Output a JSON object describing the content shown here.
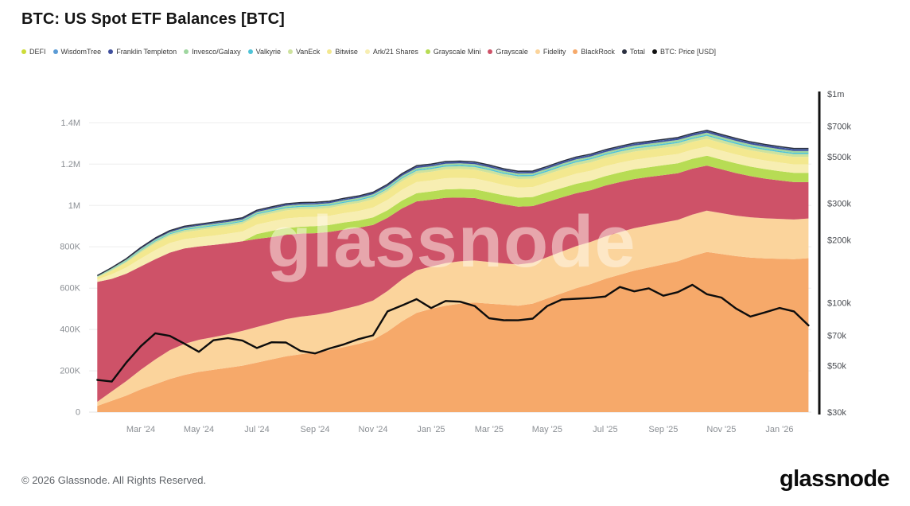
{
  "page": {
    "title": "BTC: US Spot ETF Balances [BTC]",
    "footer": "© 2026 Glassnode. All Rights Reserved.",
    "logo": "glassnode",
    "watermark": "glassnode"
  },
  "legend": [
    {
      "label": "DEFI",
      "slug": "defi",
      "color": "#cddc39"
    },
    {
      "label": "WisdomTree",
      "slug": "wisdomtree",
      "color": "#5b9bd5"
    },
    {
      "label": "Franklin Templeton",
      "slug": "franklin-templeton",
      "color": "#3f4f9d"
    },
    {
      "label": "Invesco/Galaxy",
      "slug": "invesco-galaxy",
      "color": "#9fd6a0"
    },
    {
      "label": "Valkyrie",
      "slug": "valkyrie",
      "color": "#4fc3d7"
    },
    {
      "label": "VanEck",
      "slug": "vaneck",
      "color": "#cde29e"
    },
    {
      "label": "Bitwise",
      "slug": "bitwise",
      "color": "#f3e88f"
    },
    {
      "label": "Ark/21 Shares",
      "slug": "ark-21-shares",
      "color": "#f7eeb2"
    },
    {
      "label": "Grayscale Mini",
      "slug": "grayscale-mini",
      "color": "#b7dc54"
    },
    {
      "label": "Grayscale",
      "slug": "grayscale",
      "color": "#ce5268"
    },
    {
      "label": "Fidelity",
      "slug": "fidelity",
      "color": "#fbd49c"
    },
    {
      "label": "BlackRock",
      "slug": "blackrock",
      "color": "#f6a96a"
    },
    {
      "label": "Total",
      "slug": "total",
      "color": "#2b3040"
    },
    {
      "label": "BTC: Price [USD]",
      "slug": "btc-price-usd",
      "color": "#111111"
    }
  ],
  "chart_data": {
    "type": "area",
    "stacked": true,
    "stack_order": "bottom-to-top",
    "title": "BTC: US Spot ETF Balances [BTC]",
    "x_unit": "months since 2024-01-15 (0.5-month steps)",
    "x_domain": [
      -0.2,
      24.6
    ],
    "x": [
      0,
      0.5,
      1,
      1.5,
      2,
      2.5,
      3,
      3.5,
      4,
      4.5,
      5,
      5.5,
      6,
      6.5,
      7,
      7.5,
      8,
      8.5,
      9,
      9.5,
      10,
      10.5,
      11,
      11.5,
      12,
      12.5,
      13,
      13.5,
      14,
      14.5,
      15,
      15.5,
      16,
      16.5,
      17,
      17.5,
      18,
      18.5,
      19,
      19.5,
      20,
      20.5,
      21,
      21.5,
      22,
      22.5,
      23,
      23.5,
      24,
      24.5
    ],
    "x_ticks": [
      {
        "label": "Mar '24",
        "t": 1.5
      },
      {
        "label": "May '24",
        "t": 3.5
      },
      {
        "label": "Jul '24",
        "t": 5.5
      },
      {
        "label": "Sep '24",
        "t": 7.5
      },
      {
        "label": "Nov '24",
        "t": 9.5
      },
      {
        "label": "Jan '25",
        "t": 11.5
      },
      {
        "label": "Mar '25",
        "t": 13.5
      },
      {
        "label": "May '25",
        "t": 15.5
      },
      {
        "label": "Jul '25",
        "t": 17.5
      },
      {
        "label": "Sep '25",
        "t": 19.5
      },
      {
        "label": "Nov '25",
        "t": 21.5
      },
      {
        "label": "Jan '26",
        "t": 23.5
      }
    ],
    "left_axis": {
      "unit": "BTC balance (thousands of BTC)",
      "max": 1540,
      "ticks": [
        {
          "label": "0",
          "v": 0
        },
        {
          "label": "200K",
          "v": 200
        },
        {
          "label": "400K",
          "v": 400
        },
        {
          "label": "600K",
          "v": 600
        },
        {
          "label": "800K",
          "v": 800
        },
        {
          "label": "1M",
          "v": 1000
        },
        {
          "label": "1.2M",
          "v": 1200
        },
        {
          "label": "1.4M",
          "v": 1400
        }
      ]
    },
    "right_axis": {
      "unit": "BTC price (USD, thousands, log scale)",
      "scale": "log",
      "min": 30,
      "max": 1000,
      "ticks": [
        {
          "label": "$1m",
          "v": 1000
        },
        {
          "label": "$700k",
          "v": 700
        },
        {
          "label": "$500k",
          "v": 500
        },
        {
          "label": "$300k",
          "v": 300
        },
        {
          "label": "$200k",
          "v": 200
        },
        {
          "label": "$100k",
          "v": 100
        },
        {
          "label": "$70k",
          "v": 70
        },
        {
          "label": "$50k",
          "v": 50
        },
        {
          "label": "$30k",
          "v": 30
        }
      ]
    },
    "value_unit": "thousands of BTC",
    "series": [
      {
        "name": "BlackRock",
        "slug": "blackrock",
        "color": "#f6a96a",
        "values": [
          30,
          55,
          80,
          110,
          135,
          160,
          180,
          195,
          205,
          215,
          225,
          240,
          255,
          270,
          280,
          290,
          300,
          315,
          330,
          350,
          390,
          440,
          480,
          500,
          515,
          525,
          530,
          525,
          520,
          515,
          525,
          550,
          575,
          600,
          620,
          645,
          665,
          685,
          700,
          715,
          730,
          755,
          775,
          765,
          755,
          748,
          744,
          742,
          740,
          745
        ]
      },
      {
        "name": "Fidelity",
        "slug": "fidelity",
        "color": "#fbd49c",
        "values": [
          20,
          45,
          70,
          95,
          120,
          140,
          150,
          155,
          158,
          162,
          168,
          172,
          176,
          180,
          182,
          180,
          182,
          184,
          186,
          190,
          196,
          202,
          206,
          204,
          206,
          205,
          204,
          202,
          200,
          199,
          198,
          200,
          202,
          203,
          204,
          205,
          206,
          205,
          204,
          202,
          200,
          201,
          200,
          198,
          196,
          195,
          194,
          193,
          192,
          192
        ]
      },
      {
        "name": "Grayscale",
        "slug": "grayscale",
        "color": "#ce5268",
        "values": [
          580,
          545,
          520,
          500,
          485,
          472,
          462,
          452,
          446,
          440,
          434,
          426,
          416,
          408,
          402,
          396,
          390,
          384,
          376,
          366,
          354,
          344,
          334,
          324,
          316,
          308,
          302,
          294,
          286,
          280,
          274,
          268,
          262,
          256,
          250,
          246,
          242,
          238,
          234,
          230,
          226,
          222,
          218,
          212,
          206,
          199,
          192,
          186,
          181,
          176
        ]
      },
      {
        "name": "Grayscale Mini",
        "slug": "grayscale-mini",
        "color": "#b7dc54",
        "values": [
          0,
          0,
          0,
          0,
          0,
          0,
          0,
          0,
          0,
          0,
          0,
          24,
          30,
          32,
          33,
          34,
          34,
          35,
          35,
          36,
          37,
          38,
          39,
          40,
          41,
          42,
          42,
          43,
          43,
          44,
          44,
          45,
          45,
          46,
          46,
          46,
          47,
          47,
          47,
          48,
          48,
          48,
          48,
          47,
          47,
          46,
          46,
          45,
          45,
          45
        ]
      },
      {
        "name": "Ark/21 Shares",
        "slug": "ark-21-shares",
        "color": "#f7eeb2",
        "values": [
          12,
          22,
          30,
          38,
          44,
          46,
          45,
          44,
          45,
          46,
          47,
          46,
          46,
          47,
          46,
          45,
          44,
          45,
          46,
          48,
          50,
          52,
          54,
          53,
          54,
          54,
          53,
          52,
          50,
          49,
          48,
          48,
          49,
          49,
          48,
          48,
          47,
          46,
          46,
          45,
          45,
          44,
          44,
          43,
          43,
          42,
          42,
          42,
          41,
          41
        ]
      },
      {
        "name": "Bitwise",
        "slug": "bitwise",
        "color": "#f3e88f",
        "values": [
          10,
          18,
          24,
          30,
          33,
          34,
          34,
          35,
          36,
          36,
          37,
          38,
          38,
          39,
          39,
          38,
          38,
          39,
          39,
          40,
          41,
          42,
          42,
          42,
          43,
          43,
          42,
          42,
          41,
          41,
          40,
          40,
          41,
          41,
          41,
          40,
          40,
          40,
          39,
          39,
          39,
          38,
          38,
          38,
          37,
          37,
          37,
          36,
          36,
          36
        ]
      },
      {
        "name": "VanEck",
        "slug": "vaneck",
        "color": "#cde29e",
        "values": [
          3,
          5,
          6,
          8,
          9,
          9,
          10,
          10,
          10,
          10,
          10,
          11,
          11,
          11,
          11,
          11,
          11,
          11,
          12,
          12,
          12,
          13,
          13,
          13,
          13,
          13,
          13,
          13,
          13,
          13,
          13,
          13,
          14,
          14,
          14,
          14,
          14,
          14,
          14,
          14,
          14,
          14,
          14,
          14,
          14,
          14,
          14,
          14,
          14,
          14
        ]
      },
      {
        "name": "Valkyrie",
        "slug": "valkyrie",
        "color": "#4fc3d7",
        "values": [
          1,
          2,
          3,
          3.5,
          4,
          4,
          4.5,
          4.5,
          5,
          5,
          5,
          5,
          5.5,
          5.5,
          5.5,
          5.5,
          5.5,
          5.5,
          5.5,
          5.5,
          5.5,
          5.5,
          6,
          6,
          6,
          6,
          6,
          6,
          6,
          6,
          6,
          6,
          6,
          6,
          6,
          6,
          6,
          6,
          6,
          6,
          6,
          6,
          6,
          6,
          6,
          6,
          6,
          6,
          6,
          6
        ]
      },
      {
        "name": "Invesco/Galaxy",
        "slug": "invesco-galaxy",
        "color": "#9fd6a0",
        "values": [
          3,
          4,
          5,
          6,
          6,
          6,
          6,
          6,
          6,
          6,
          6,
          6.5,
          6.5,
          6.5,
          6.5,
          6.5,
          6.5,
          7,
          7,
          7,
          7,
          7.5,
          7.5,
          7.5,
          8,
          8,
          8,
          8,
          8,
          8,
          8,
          8,
          8.5,
          8.5,
          8.5,
          8.5,
          8.5,
          9,
          9,
          9,
          9,
          9,
          9,
          9,
          9,
          9,
          9,
          9,
          9,
          9
        ]
      },
      {
        "name": "Franklin Templeton",
        "slug": "franklin-templeton",
        "color": "#3f4f9d",
        "values": [
          1,
          2,
          3,
          4,
          4.5,
          5,
          5,
          5,
          5,
          5.5,
          5.5,
          5.5,
          6,
          6,
          6,
          6,
          6,
          6,
          6.5,
          6.5,
          6.5,
          7,
          7,
          7,
          7,
          7,
          7,
          7,
          7,
          7,
          7,
          7,
          7.5,
          7.5,
          7.5,
          7.5,
          7.5,
          8,
          8,
          8,
          8,
          8,
          8,
          8,
          8,
          8,
          8,
          8,
          8,
          8
        ]
      },
      {
        "name": "WisdomTree",
        "slug": "wisdomtree",
        "color": "#5b9bd5",
        "values": [
          0.5,
          1,
          1.5,
          2,
          2,
          2.5,
          2.5,
          2.5,
          3,
          3,
          3,
          3,
          3,
          3,
          3,
          3,
          3,
          3,
          3,
          3,
          3.5,
          3.5,
          3.5,
          3.5,
          3.5,
          3.5,
          3.5,
          3.5,
          3.5,
          3.5,
          3.5,
          3.5,
          3.5,
          3.5,
          3.5,
          3.5,
          3.5,
          3.5,
          3.5,
          3.5,
          3.5,
          3.5,
          3.5,
          3.5,
          3.5,
          3.5,
          3.5,
          3.5,
          3.5,
          3.5
        ]
      },
      {
        "name": "DEFI",
        "slug": "defi",
        "color": "#cddc39",
        "values": [
          0.2,
          0.2,
          0.2,
          0.2,
          0.2,
          0.2,
          0.2,
          0.2,
          0.2,
          0.2,
          0.2,
          0.2,
          0.2,
          0.2,
          0.2,
          0.2,
          0.2,
          0.2,
          0.2,
          0.2,
          0.2,
          0.2,
          0.2,
          0.2,
          0.2,
          0.2,
          0.2,
          0.2,
          0.2,
          0.2,
          0.2,
          0.2,
          0.2,
          0.2,
          0.2,
          0.2,
          0.2,
          0.2,
          0.2,
          0.2,
          0.2,
          0.2,
          0.2,
          0.2,
          0.2,
          0.2,
          0.2,
          0.2,
          0.2,
          0.2
        ]
      }
    ],
    "total": {
      "name": "Total",
      "slug": "total",
      "color": "#2b3040",
      "derived": "sum of stacked series"
    },
    "price": {
      "name": "BTC: Price [USD]",
      "slug": "btc-price-usd",
      "color": "#0d0d0d",
      "unit": "USD thousands",
      "values": [
        42.8,
        42.0,
        51.8,
        62.0,
        71.5,
        69.5,
        63.8,
        58.3,
        66.2,
        67.8,
        66.0,
        60.8,
        64.8,
        64.6,
        58.9,
        57.3,
        60.5,
        63.3,
        67.0,
        69.9,
        91.0,
        97.2,
        104.2,
        94.4,
        102.1,
        101.3,
        96.6,
        84.4,
        82.6,
        82.5,
        84.0,
        96.5,
        103.7,
        104.6,
        105.5,
        107.2,
        119.1,
        113.5,
        117.4,
        108.2,
        112.5,
        122.0,
        110.0,
        106.0,
        94.0,
        86.0,
        90.0,
        94.5,
        91.0,
        78.0
      ]
    }
  }
}
